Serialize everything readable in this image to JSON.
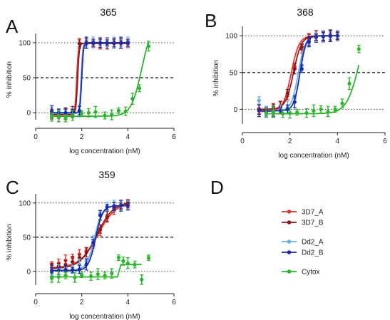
{
  "figure": {
    "panel_letters": [
      "A",
      "B",
      "C",
      "D"
    ]
  },
  "chart_data": [
    {
      "panel": "A",
      "type": "line",
      "title": "365",
      "xlabel": "log concentration (nM)",
      "ylabel": "% inhibition",
      "xlim": [
        0,
        6
      ],
      "ylim": [
        -10,
        105
      ],
      "xticks": [
        "0",
        "2",
        "4",
        "6"
      ],
      "yticks": [
        "0",
        "50",
        "100"
      ],
      "reference_lines": [
        0,
        50,
        100
      ],
      "series": [
        {
          "name": "3D7_A",
          "color": "#e8312a",
          "x": [
            0.7,
            1.0,
            1.3,
            1.6,
            1.9,
            2.2,
            2.5,
            2.8,
            3.1,
            3.4,
            3.7,
            4.0
          ],
          "y": [
            -3,
            -7,
            -2,
            -1,
            99,
            99,
            99,
            99,
            99,
            99,
            99,
            99
          ],
          "fit": {
            "bottom": -3,
            "top": 99,
            "ec50_log": 1.78,
            "hill": 12
          }
        },
        {
          "name": "3D7_B",
          "color": "#8b1a1a",
          "x": [
            0.7,
            1.0,
            1.3,
            1.6,
            1.9,
            2.2,
            2.5,
            2.8,
            3.1,
            3.4,
            3.7,
            4.0
          ],
          "y": [
            -2,
            -3,
            -1,
            1,
            99,
            99,
            99,
            99,
            99,
            99,
            99,
            99
          ],
          "fit": {
            "bottom": -2,
            "top": 99,
            "ec50_log": 1.82,
            "hill": 12
          }
        },
        {
          "name": "Dd2_A",
          "color": "#6ab0e8",
          "x": [
            0.7,
            1.0,
            1.3,
            1.6,
            1.9,
            2.2,
            2.5,
            2.8,
            3.1,
            3.4,
            3.7,
            4.0
          ],
          "y": [
            2,
            -1,
            -1,
            0,
            2,
            100,
            101,
            100,
            100,
            100,
            100,
            101
          ],
          "fit": {
            "bottom": -1,
            "top": 100,
            "ec50_log": 1.97,
            "hill": 12
          }
        },
        {
          "name": "Dd2_B",
          "color": "#1a2aa8",
          "x": [
            0.7,
            1.0,
            1.3,
            1.6,
            1.9,
            2.2,
            2.5,
            2.8,
            3.1,
            3.4,
            3.7,
            4.0
          ],
          "y": [
            2,
            0,
            0,
            1,
            3,
            100,
            100,
            100,
            100,
            100,
            100,
            100
          ],
          "fit": {
            "bottom": 0,
            "top": 100,
            "ec50_log": 2.0,
            "hill": 12
          }
        },
        {
          "name": "Cytox",
          "color": "#2db52d",
          "x": [
            0.7,
            1.0,
            1.3,
            1.6,
            2.0,
            2.3,
            2.6,
            3.0,
            3.3,
            3.6,
            3.9,
            4.2,
            4.5,
            4.9
          ],
          "y": [
            -6,
            -5,
            -8,
            -4,
            -1,
            0,
            1,
            -4,
            -3,
            3,
            2,
            20,
            35,
            95
          ],
          "fit": {
            "bottom": -5,
            "top": 130,
            "ec50_log": 4.6,
            "hill": 1.9
          }
        }
      ]
    },
    {
      "panel": "B",
      "type": "line",
      "title": "368",
      "xlabel": "log concentration (nM)",
      "ylabel": "% inhibition",
      "xlim": [
        0,
        6
      ],
      "ylim": [
        -20,
        105
      ],
      "xticks": [
        "0",
        "2",
        "4",
        "6"
      ],
      "yticks": [
        "0",
        "50",
        "100"
      ],
      "reference_lines": [
        0,
        50,
        100
      ],
      "series": [
        {
          "name": "3D7_A",
          "color": "#e8312a",
          "x": [
            0.7,
            1.0,
            1.3,
            1.6,
            1.9,
            2.2,
            2.5,
            2.8,
            3.1,
            3.4,
            3.7,
            4.0
          ],
          "y": [
            -2,
            -4,
            0,
            5,
            20,
            58,
            82,
            95,
            98,
            99,
            99,
            100
          ],
          "fit": {
            "bottom": -3,
            "top": 100,
            "ec50_log": 2.05,
            "hill": 2.6
          }
        },
        {
          "name": "3D7_B",
          "color": "#8b1a1a",
          "x": [
            0.7,
            1.0,
            1.3,
            1.6,
            1.9,
            2.2,
            2.5,
            2.8,
            3.1,
            3.4,
            3.7,
            4.0
          ],
          "y": [
            0,
            0,
            1,
            3,
            22,
            55,
            85,
            96,
            99,
            99,
            100,
            100
          ],
          "fit": {
            "bottom": 0,
            "top": 100,
            "ec50_log": 2.15,
            "hill": 2.6
          }
        },
        {
          "name": "Dd2_A",
          "color": "#6ab0e8",
          "x": [
            0.7,
            1.0,
            1.3,
            1.6,
            1.9,
            2.2,
            2.5,
            2.8,
            3.1,
            3.4,
            3.7,
            4.0
          ],
          "y": [
            12,
            -3,
            -5,
            0,
            3,
            15,
            60,
            90,
            98,
            99,
            100,
            100
          ],
          "fit": {
            "bottom": -2,
            "top": 100,
            "ec50_log": 2.35,
            "hill": 3.0
          }
        },
        {
          "name": "Dd2_B",
          "color": "#1a2aa8",
          "x": [
            0.7,
            1.0,
            1.3,
            1.6,
            1.9,
            2.2,
            2.5,
            2.8,
            3.1,
            3.4,
            3.7,
            4.0
          ],
          "y": [
            -2,
            -3,
            -3,
            -2,
            0,
            10,
            55,
            92,
            98,
            99,
            100,
            100
          ],
          "fit": {
            "bottom": -2,
            "top": 100,
            "ec50_log": 2.42,
            "hill": 3.4
          }
        },
        {
          "name": "Cytox",
          "color": "#2db52d",
          "x": [
            1.0,
            1.3,
            1.7,
            2.0,
            2.3,
            2.7,
            3.0,
            3.3,
            3.6,
            3.9,
            4.2,
            4.5,
            4.9
          ],
          "y": [
            -5,
            -3,
            -6,
            -5,
            -4,
            -5,
            -2,
            0,
            -3,
            0,
            8,
            35,
            82
          ],
          "fit": {
            "bottom": -6,
            "top": 140,
            "ec50_log": 4.95,
            "hill": 1.6
          }
        }
      ]
    },
    {
      "panel": "C",
      "type": "line",
      "title": "359",
      "xlabel": "log concentration (nM)",
      "ylabel": "% inhibition",
      "xlim": [
        0,
        6
      ],
      "ylim": [
        -20,
        105
      ],
      "xticks": [
        "0",
        "2",
        "4",
        "6"
      ],
      "yticks": [
        "0",
        "50",
        "100"
      ],
      "reference_lines": [
        0,
        50,
        100
      ],
      "series": [
        {
          "name": "3D7_A",
          "color": "#e8312a",
          "x": [
            0.7,
            1.0,
            1.3,
            1.6,
            1.9,
            2.2,
            2.5,
            2.8,
            3.1,
            3.4,
            3.7,
            4.0
          ],
          "y": [
            10,
            12,
            16,
            20,
            25,
            30,
            40,
            60,
            78,
            90,
            96,
            99
          ],
          "fit": {
            "bottom": 5,
            "top": 102,
            "ec50_log": 2.7,
            "hill": 1.1
          }
        },
        {
          "name": "3D7_B",
          "color": "#8b1a1a",
          "x": [
            0.7,
            1.0,
            1.3,
            1.6,
            1.9,
            2.2,
            2.5,
            2.8,
            3.1,
            3.4,
            3.7,
            4.0
          ],
          "y": [
            5,
            8,
            10,
            14,
            20,
            28,
            42,
            62,
            80,
            92,
            97,
            100
          ],
          "fit": {
            "bottom": 4,
            "top": 102,
            "ec50_log": 2.65,
            "hill": 1.2
          }
        },
        {
          "name": "Dd2_A",
          "color": "#6ab0e8",
          "x": [
            0.7,
            1.0,
            1.3,
            1.6,
            1.9,
            2.2,
            2.5,
            2.8,
            3.1,
            3.4,
            3.7,
            4.0
          ],
          "y": [
            2,
            3,
            2,
            3,
            10,
            14,
            45,
            85,
            95,
            96,
            96,
            96
          ],
          "fit": {
            "bottom": 2,
            "top": 96,
            "ec50_log": 2.55,
            "hill": 2.6
          }
        },
        {
          "name": "Dd2_B",
          "color": "#1a2aa8",
          "x": [
            0.7,
            1.0,
            1.3,
            1.6,
            1.9,
            2.2,
            2.5,
            2.8,
            3.1,
            3.4,
            3.7,
            4.0
          ],
          "y": [
            1,
            1,
            2,
            2,
            3,
            10,
            42,
            82,
            94,
            95,
            96,
            96
          ],
          "fit": {
            "bottom": 1,
            "top": 96,
            "ec50_log": 2.6,
            "hill": 2.8
          }
        },
        {
          "name": "Cytox",
          "color": "#2db52d",
          "x": [
            0.7,
            1.0,
            1.3,
            1.7,
            2.0,
            2.4,
            2.7,
            3.0,
            3.3,
            3.6,
            3.8,
            4.0,
            4.3,
            4.6,
            4.9
          ],
          "y": [
            -10,
            -8,
            -6,
            -9,
            -5,
            -7,
            -4,
            -6,
            -3,
            20,
            15,
            12,
            10,
            -12,
            20
          ],
          "fit": {
            "segments": [
              [
                [
                  0.7,
                  -8
                ],
                [
                  3.55,
                  -8
                ]
              ],
              [
                [
                  3.55,
                  -8
                ],
                [
                  3.7,
                  10
                ]
              ],
              [
                [
                  3.7,
                  10
                ],
                [
                  4.6,
                  10
                ]
              ]
            ]
          }
        }
      ]
    }
  ],
  "legend": {
    "entries": [
      {
        "name": "3D7_A",
        "color": "#e8312a"
      },
      {
        "name": "3D7_B",
        "color": "#8b1a1a"
      },
      {
        "name": "Dd2_A",
        "color": "#6ab0e8"
      },
      {
        "name": "Dd2_B",
        "color": "#1a2aa8"
      },
      {
        "name": "Cytox",
        "color": "#2db52d"
      }
    ]
  }
}
